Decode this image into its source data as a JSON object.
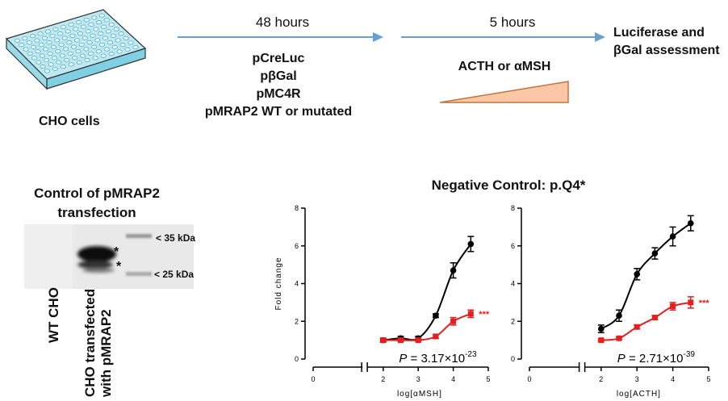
{
  "workflow": {
    "cells_label": "CHO cells",
    "step1_duration": "48 hours",
    "transfected_constructs": [
      "pCreLuc",
      "pβGal",
      "pMC4R",
      "pMRAP2 WT or mutated"
    ],
    "step2_duration": "5 hours",
    "treatment": "ACTH or αMSH",
    "readout": [
      "Luciferase and",
      "βGal assessment"
    ]
  },
  "western_blot": {
    "title": [
      "Control of pMRAP2",
      "transfection"
    ],
    "markers": [
      "< 35 kDa",
      "< 25 kDa"
    ],
    "asterisks": [
      "*",
      "*"
    ],
    "lane_labels": [
      "WT CHO",
      "CHO transfected",
      "with pMRAP2"
    ]
  },
  "figure_title": "Negative Control: p.Q4*",
  "colors": {
    "control": "#000000",
    "mutant": "#e3201f",
    "arrow": "#6a9fd4",
    "ramp": "#f9c7a5",
    "ramp_border": "#c0763d"
  },
  "chart_data": [
    {
      "type": "line",
      "xlabel": "log[αMSH]",
      "ylabel": "Fold change",
      "xlim": [
        0,
        5
      ],
      "ylim": [
        0,
        8
      ],
      "x_ticks": [
        0,
        2,
        3,
        4,
        5
      ],
      "y_ticks": [
        0,
        2,
        4,
        6,
        8
      ],
      "series": [
        {
          "color": "#000000",
          "x": [
            2,
            2.5,
            3,
            3.5,
            4,
            4.5
          ],
          "y": [
            1.0,
            1.1,
            1.1,
            2.3,
            4.7,
            6.1
          ],
          "err": [
            0.1,
            0.1,
            0.1,
            0.1,
            0.4,
            0.4
          ]
        },
        {
          "color": "#e3201f",
          "x": [
            2,
            2.5,
            3,
            3.5,
            4,
            4.5
          ],
          "y": [
            1.0,
            1.0,
            1.0,
            1.2,
            2.0,
            2.4
          ],
          "err": [
            0.05,
            0.05,
            0.05,
            0.1,
            0.2,
            0.2
          ]
        }
      ],
      "significance": "***",
      "p_label": "P",
      "p_value": " = 3.17×10",
      "p_exp": "-23"
    },
    {
      "type": "line",
      "xlabel": "log[ACTH]",
      "ylabel": "",
      "xlim": [
        0,
        5
      ],
      "ylim": [
        0,
        8
      ],
      "x_ticks": [
        0,
        2,
        3,
        4,
        5
      ],
      "y_ticks": [
        0,
        2,
        4,
        6,
        8
      ],
      "series": [
        {
          "color": "#000000",
          "x": [
            2,
            2.5,
            3,
            3.5,
            4,
            4.5
          ],
          "y": [
            1.6,
            2.3,
            4.5,
            5.6,
            6.5,
            7.2
          ],
          "err": [
            0.2,
            0.3,
            0.3,
            0.3,
            0.5,
            0.4
          ]
        },
        {
          "color": "#e3201f",
          "x": [
            2,
            2.5,
            3,
            3.5,
            4,
            4.5
          ],
          "y": [
            1.0,
            1.1,
            1.7,
            2.2,
            2.8,
            3.0
          ],
          "err": [
            0.05,
            0.05,
            0.1,
            0.1,
            0.2,
            0.3
          ]
        }
      ],
      "significance": "***",
      "p_label": "P",
      "p_value": " = 2.71×10",
      "p_exp": "-39"
    }
  ]
}
